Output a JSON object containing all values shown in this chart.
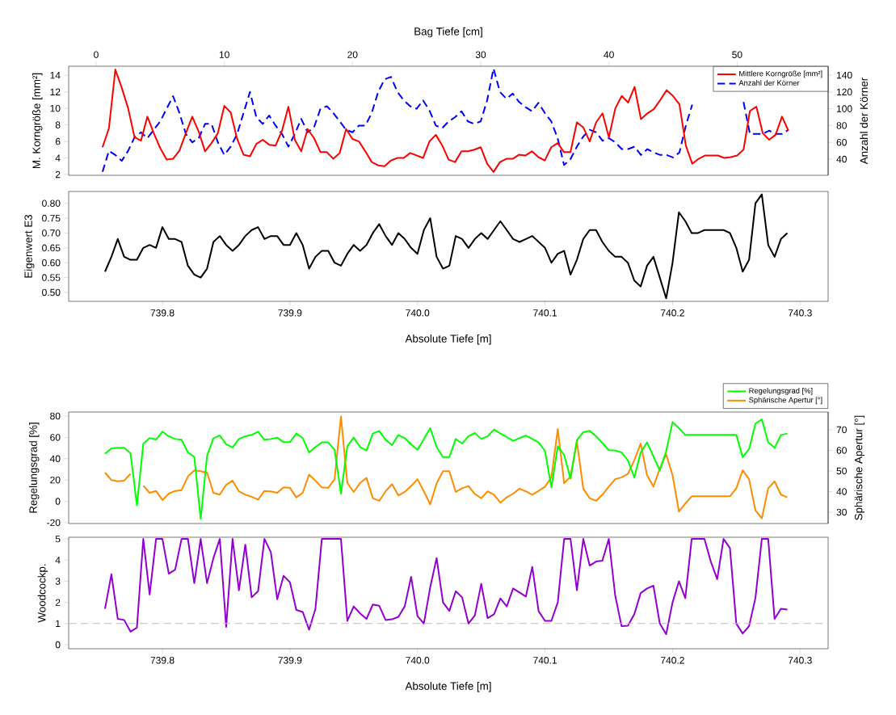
{
  "chart_data": [
    {
      "type": "line",
      "xlabel": "Bag Tiefe [cm]",
      "ylabel": "M. Korngröße [mm²]",
      "y2label": "Anzahl der Körner",
      "legend": "top right",
      "x": [
        0.5,
        1,
        1.5,
        2,
        2.5,
        3,
        3.5,
        4,
        4.5,
        5,
        5.5,
        6,
        6.5,
        7,
        7.5,
        8,
        8.5,
        9,
        9.5,
        10,
        10.5,
        11,
        11.5,
        12,
        12.5,
        13,
        13.5,
        14,
        14.5,
        15,
        15.5,
        16,
        16.5,
        17,
        17.5,
        18,
        18.5,
        19,
        19.5,
        20,
        20.5,
        21,
        21.5,
        22,
        22.5,
        23,
        23.5,
        24,
        24.5,
        25,
        25.5,
        26,
        26.5,
        27,
        27.5,
        28,
        28.5,
        29,
        29.5,
        30,
        30.5,
        31,
        31.5,
        32,
        32.5,
        33,
        33.5,
        34,
        34.5,
        35,
        35.5,
        36,
        36.5,
        37,
        37.5,
        38,
        38.5,
        39,
        39.5,
        40,
        40.5,
        41,
        41.5,
        42,
        42.5,
        43,
        43.5,
        44,
        44.5,
        45,
        45.5,
        46,
        46.5,
        47,
        47.5,
        48,
        48.5,
        49,
        49.5,
        50,
        50.5,
        51,
        51.5,
        52,
        52.5,
        53,
        53.5,
        54
      ],
      "xlim": [
        -2.14,
        57.1
      ],
      "xticks": [
        0,
        10,
        20,
        30,
        40,
        50
      ],
      "ylim": [
        1.9,
        15.1
      ],
      "yticks": [
        2,
        4,
        6,
        8,
        10,
        12,
        14
      ],
      "y2lim": [
        20.8,
        150.6
      ],
      "y2ticks": [
        40,
        60,
        80,
        100,
        120,
        140
      ],
      "series": [
        {
          "name": "Mittlere Korngröße [mm²]",
          "color": "#ff0000",
          "values": [
            5.3,
            7.6,
            14.7,
            12.5,
            10,
            6.5,
            6.1,
            9,
            7,
            5.2,
            3.8,
            3.9,
            4.9,
            7,
            9,
            7.2,
            4.8,
            5.8,
            7,
            10.3,
            9.5,
            6.3,
            4.4,
            4.2,
            5.7,
            6.2,
            5.6,
            5.5,
            7.3,
            10.2,
            6.2,
            4.8,
            7.5,
            6.4,
            4.7,
            4.7,
            3.9,
            4.6,
            7.5,
            6.3,
            6,
            4.8,
            3.5,
            3.1,
            3,
            3.7,
            4,
            4,
            4.6,
            4.3,
            4,
            6,
            6.8,
            5.5,
            3.8,
            3.5,
            4.8,
            4.8,
            5,
            5.3,
            3.3,
            2.3,
            3.5,
            3.9,
            3.9,
            4.4,
            4.3,
            4.8,
            4.1,
            3.7,
            5.3,
            5.8,
            4.7,
            4.7,
            8.3,
            7.7,
            6,
            8.3,
            9.4,
            6.5,
            10,
            11.5,
            10.7,
            12.6,
            8.7,
            9.4,
            9.9,
            11,
            12.2,
            11.5,
            10.5,
            5.5,
            3.3,
            3.9,
            4.3,
            4.3,
            4.3,
            4,
            4.1,
            4.3,
            5,
            9.7,
            10.2,
            7,
            6.2,
            6.8,
            9,
            7.3
          ]
        },
        {
          "name": "Anzahl der Körner",
          "color": "#0000ff",
          "line_style": "dashed",
          "axis": "y2",
          "values": [
            25,
            50,
            45,
            38,
            50,
            66,
            72,
            65,
            75,
            85,
            100,
            115,
            95,
            70,
            60,
            65,
            82,
            82,
            60,
            45,
            55,
            70,
            95,
            120,
            90,
            82,
            92,
            80,
            70,
            55,
            70,
            88,
            72,
            78,
            100,
            103,
            95,
            85,
            75,
            72,
            80,
            80,
            95,
            120,
            135,
            138,
            120,
            110,
            103,
            100,
            110,
            98,
            80,
            77,
            85,
            90,
            97,
            85,
            82,
            85,
            110,
            148,
            120,
            112,
            118,
            108,
            102,
            97,
            107,
            95,
            85,
            65,
            33,
            40,
            55,
            67,
            75,
            72,
            62,
            65,
            60,
            52,
            52,
            55,
            45,
            52,
            48,
            45,
            45,
            42,
            48,
            80,
            105,
            null,
            null,
            null,
            null,
            null,
            null,
            null,
            108,
            70,
            70,
            70,
            74,
            70,
            70,
            75
          ]
        }
      ]
    },
    {
      "type": "line",
      "xlabel": "Absolute Tiefe [m]",
      "ylabel": "Eigenwert E3",
      "x": [
        739.755,
        739.76,
        739.765,
        739.77,
        739.775,
        739.78,
        739.785,
        739.79,
        739.795,
        739.8,
        739.805,
        739.81,
        739.815,
        739.82,
        739.825,
        739.83,
        739.835,
        739.84,
        739.845,
        739.85,
        739.855,
        739.86,
        739.865,
        739.87,
        739.875,
        739.88,
        739.885,
        739.89,
        739.895,
        739.9,
        739.905,
        739.91,
        739.915,
        739.92,
        739.925,
        739.93,
        739.935,
        739.94,
        739.945,
        739.95,
        739.955,
        739.96,
        739.965,
        739.97,
        739.975,
        739.98,
        739.985,
        739.99,
        739.995,
        740.0,
        740.005,
        740.01,
        740.015,
        740.02,
        740.025,
        740.03,
        740.035,
        740.04,
        740.045,
        740.05,
        740.055,
        740.06,
        740.065,
        740.07,
        740.075,
        740.08,
        740.085,
        740.09,
        740.095,
        740.1,
        740.105,
        740.11,
        740.115,
        740.12,
        740.125,
        740.13,
        740.135,
        740.14,
        740.145,
        740.15,
        740.155,
        740.16,
        740.165,
        740.17,
        740.175,
        740.18,
        740.185,
        740.19,
        740.195,
        740.2,
        740.205,
        740.21,
        740.215,
        740.22,
        740.225,
        740.23,
        740.235,
        740.24,
        740.245,
        740.25,
        740.255,
        740.26,
        740.265,
        740.27,
        740.275,
        740.28,
        740.285,
        740.29
      ],
      "xlim": [
        739.7265,
        740.322
      ],
      "xticks": [
        {
          "value": 739.8,
          "label": "739.8"
        },
        {
          "value": 739.9,
          "label": "739.9"
        },
        {
          "value": 740.0,
          "label": "740.0"
        },
        {
          "value": 740.1,
          "label": "740.1"
        },
        {
          "value": 740.2,
          "label": "740.2"
        },
        {
          "value": 740.3,
          "label": "740.3"
        }
      ],
      "ylim": [
        0.47,
        0.84
      ],
      "yticks": [
        {
          "value": 0.5,
          "label": "0.50"
        },
        {
          "value": 0.55,
          "label": "0.55"
        },
        {
          "value": 0.6,
          "label": "0.60"
        },
        {
          "value": 0.65,
          "label": "0.65"
        },
        {
          "value": 0.7,
          "label": "0.70"
        },
        {
          "value": 0.75,
          "label": "0.75"
        },
        {
          "value": 0.8,
          "label": "0.80"
        }
      ],
      "series": [
        {
          "color": "#000000",
          "values": [
            0.57,
            0.62,
            0.68,
            0.62,
            0.61,
            0.61,
            0.65,
            0.66,
            0.65,
            0.72,
            0.68,
            0.68,
            0.67,
            0.59,
            0.56,
            0.55,
            0.58,
            0.67,
            0.69,
            0.66,
            0.64,
            0.66,
            0.69,
            0.71,
            0.72,
            0.68,
            0.69,
            0.69,
            0.66,
            0.66,
            0.7,
            0.66,
            0.58,
            0.62,
            0.64,
            0.64,
            0.6,
            0.59,
            0.63,
            0.66,
            0.64,
            0.66,
            0.7,
            0.73,
            0.69,
            0.66,
            0.7,
            0.68,
            0.65,
            0.63,
            0.71,
            0.75,
            0.62,
            0.58,
            0.59,
            0.69,
            0.68,
            0.65,
            0.68,
            0.7,
            0.68,
            0.71,
            0.74,
            0.71,
            0.68,
            0.67,
            0.68,
            0.69,
            0.67,
            0.65,
            0.6,
            0.63,
            0.64,
            0.56,
            0.61,
            0.68,
            0.71,
            0.71,
            0.67,
            0.64,
            0.62,
            0.62,
            0.6,
            0.54,
            0.52,
            0.59,
            0.62,
            0.55,
            0.48,
            0.6,
            0.77,
            0.74,
            0.7,
            0.7,
            0.71,
            0.71,
            0.71,
            0.71,
            0.7,
            0.65,
            0.57,
            0.61,
            0.8,
            0.83,
            0.66,
            0.62,
            0.68,
            0.7
          ]
        }
      ]
    },
    {
      "type": "line",
      "ylabel": "Regelungsgrad [%]",
      "y2label": "Sphärische Apertur [°]",
      "legend": "top right",
      "tick_labels": "y",
      "x": [
        739.755,
        739.76,
        739.765,
        739.77,
        739.775,
        739.78,
        739.785,
        739.79,
        739.795,
        739.8,
        739.805,
        739.81,
        739.815,
        739.82,
        739.825,
        739.83,
        739.835,
        739.84,
        739.845,
        739.85,
        739.855,
        739.86,
        739.865,
        739.87,
        739.875,
        739.88,
        739.885,
        739.89,
        739.895,
        739.9,
        739.905,
        739.91,
        739.915,
        739.92,
        739.925,
        739.93,
        739.935,
        739.94,
        739.945,
        739.95,
        739.955,
        739.96,
        739.965,
        739.97,
        739.975,
        739.98,
        739.985,
        739.99,
        739.995,
        740.0,
        740.005,
        740.01,
        740.015,
        740.02,
        740.025,
        740.03,
        740.035,
        740.04,
        740.045,
        740.05,
        740.055,
        740.06,
        740.065,
        740.07,
        740.075,
        740.08,
        740.085,
        740.09,
        740.095,
        740.1,
        740.105,
        740.11,
        740.115,
        740.12,
        740.125,
        740.13,
        740.135,
        740.14,
        740.145,
        740.15,
        740.155,
        740.16,
        740.165,
        740.17,
        740.175,
        740.18,
        740.185,
        740.19,
        740.195,
        740.2,
        740.205,
        740.21,
        740.215,
        740.22,
        740.225,
        740.23,
        740.235,
        740.24,
        740.245,
        740.25,
        740.255,
        740.26,
        740.265,
        740.27,
        740.275,
        740.28,
        740.285,
        740.29
      ],
      "xlim": [
        739.7265,
        740.322
      ],
      "ylim": [
        -20.8,
        83.8
      ],
      "yticks": [
        -20,
        0,
        20,
        40,
        60,
        80
      ],
      "y2lim": [
        24.5,
        78.6
      ],
      "y2ticks": [
        30,
        40,
        50,
        60,
        70
      ],
      "series": [
        {
          "name": "Regelungsgrad [%]",
          "color": "#00ff00",
          "values": [
            44.6,
            49.7,
            50.2,
            50.2,
            45.2,
            -3.8,
            54,
            59.3,
            58,
            65.4,
            61.1,
            58.5,
            57.8,
            45.9,
            41.6,
            -16.5,
            42.6,
            59.3,
            61.8,
            53.5,
            50.5,
            58.5,
            61.1,
            62.3,
            65.4,
            57.8,
            58.5,
            59.8,
            55.5,
            55.5,
            63.6,
            59.3,
            45.9,
            51,
            55.3,
            55.3,
            48.4,
            7.3,
            51.7,
            59.8,
            51,
            47.7,
            63.6,
            66.1,
            57.8,
            52.7,
            62.3,
            59.3,
            53.5,
            48.4,
            58.5,
            68.6,
            51,
            41.6,
            41.6,
            58.5,
            54.2,
            61.1,
            64.1,
            58.5,
            61.1,
            67.4,
            63.6,
            60.3,
            56.8,
            59.3,
            61.8,
            58.5,
            55.3,
            47.2,
            13.1,
            51.7,
            43.6,
            21.2,
            57.3,
            64.9,
            66.1,
            61.1,
            54.8,
            48,
            47.7,
            45.9,
            38.4,
            22.4,
            45.9,
            55.3,
            42.1,
            29,
            47.2,
            74.4,
            68.6,
            62.3,
            62.3,
            62.3,
            62.3,
            62.3,
            62.3,
            62.3,
            62.3,
            62.3,
            41.4,
            49.2,
            73,
            77,
            55.3,
            50.2,
            62.3,
            63.6
          ]
        },
        {
          "name": "Sphärische Apertur [°]",
          "color": "#ff8c00",
          "axis": "y2",
          "values": [
            49.2,
            45.6,
            45,
            45.3,
            48.6,
            null,
            42.9,
            39.4,
            40.3,
            35.9,
            39,
            40.3,
            40.7,
            47.3,
            50.3,
            49.9,
            49.2,
            39.4,
            38.5,
            43.3,
            45.3,
            40.1,
            38.5,
            37.5,
            36.1,
            40.3,
            40.1,
            39.4,
            42,
            41.8,
            37.2,
            39.4,
            48.2,
            45.3,
            42,
            41.8,
            46,
            76.4,
            44.2,
            39.8,
            44.2,
            46.6,
            36.8,
            35.5,
            40.1,
            43.6,
            38.1,
            39.8,
            42.7,
            46,
            40.1,
            33.8,
            44,
            49.9,
            49.9,
            39.8,
            41.6,
            42.7,
            38.8,
            36.8,
            40.1,
            38.5,
            34.6,
            37.2,
            39,
            41.4,
            40.1,
            38.5,
            40.3,
            42.4,
            46.9,
            70.4,
            44,
            47.3,
            64.2,
            41.4,
            36.8,
            35.5,
            38.5,
            42.4,
            46,
            46.9,
            48.6,
            55.1,
            63.3,
            47.9,
            42.4,
            51.2,
            58.1,
            47.9,
            30.3,
            34.2,
            37.7,
            37.7,
            37.7,
            37.7,
            37.7,
            37.7,
            37.7,
            41.6,
            50.3,
            46,
            30.9,
            27,
            41.6,
            45,
            38.5,
            37.2
          ]
        }
      ]
    },
    {
      "type": "line",
      "xlabel": "Absolute Tiefe [m]",
      "ylabel": "Woodcockp.",
      "x": [
        739.755,
        739.76,
        739.765,
        739.77,
        739.775,
        739.78,
        739.785,
        739.79,
        739.795,
        739.8,
        739.805,
        739.81,
        739.815,
        739.82,
        739.825,
        739.83,
        739.835,
        739.84,
        739.845,
        739.85,
        739.855,
        739.86,
        739.865,
        739.87,
        739.875,
        739.88,
        739.885,
        739.89,
        739.895,
        739.9,
        739.905,
        739.91,
        739.915,
        739.92,
        739.925,
        739.93,
        739.935,
        739.94,
        739.945,
        739.95,
        739.955,
        739.96,
        739.965,
        739.97,
        739.975,
        739.98,
        739.985,
        739.99,
        739.995,
        740.0,
        740.005,
        740.01,
        740.015,
        740.02,
        740.025,
        740.03,
        740.035,
        740.04,
        740.045,
        740.05,
        740.055,
        740.06,
        740.065,
        740.07,
        740.075,
        740.08,
        740.085,
        740.09,
        740.095,
        740.1,
        740.105,
        740.11,
        740.115,
        740.12,
        740.125,
        740.13,
        740.135,
        740.14,
        740.145,
        740.15,
        740.155,
        740.16,
        740.165,
        740.17,
        740.175,
        740.18,
        740.185,
        740.19,
        740.195,
        740.2,
        740.205,
        740.21,
        740.215,
        740.22,
        740.225,
        740.23,
        740.235,
        740.24,
        740.245,
        740.25,
        740.255,
        740.26,
        740.265,
        740.27,
        740.275,
        740.28,
        740.285,
        740.29
      ],
      "xlim": [
        739.7265,
        740.322
      ],
      "xticks": [
        {
          "value": 739.8,
          "label": "739.8"
        },
        {
          "value": 739.9,
          "label": "739.9"
        },
        {
          "value": 740.0,
          "label": "740.0"
        },
        {
          "value": 740.1,
          "label": "740.1"
        },
        {
          "value": 740.2,
          "label": "740.2"
        },
        {
          "value": 740.3,
          "label": "740.3"
        }
      ],
      "ylim": [
        -0.19,
        5.08
      ],
      "yticks": [
        0,
        1,
        2,
        3,
        4,
        5
      ],
      "ref_lines": [
        {
          "axis": "y",
          "value": 1,
          "color": "#bebebe",
          "line_style": "dashed"
        }
      ],
      "series": [
        {
          "color": "#9400d3",
          "values": [
            1.7,
            3.33,
            1.22,
            1.17,
            0.62,
            0.81,
            5,
            2.37,
            5,
            5,
            3.36,
            3.55,
            5,
            5,
            2.91,
            5,
            2.91,
            4.1,
            5,
            0.84,
            5,
            2.57,
            4.73,
            2.24,
            2.53,
            5,
            4.38,
            2.15,
            3.26,
            2.95,
            1.64,
            1.55,
            0.71,
            1.7,
            5,
            5,
            5,
            5,
            1.13,
            1.81,
            1.48,
            1.22,
            1.9,
            1.84,
            1.17,
            1.2,
            1.32,
            1.81,
            3.21,
            1.35,
            1,
            2.72,
            4.1,
            2,
            1.6,
            2.53,
            2.24,
            1,
            1.39,
            2.88,
            1.26,
            1.44,
            2.19,
            1.81,
            2.66,
            2.47,
            2.28,
            3.68,
            1.58,
            1.13,
            1.13,
            2,
            5,
            5,
            2.57,
            5,
            3.74,
            3.93,
            3.97,
            5,
            2.34,
            0.88,
            0.9,
            1.44,
            2.44,
            2.66,
            2.79,
            1,
            0.5,
            2,
            3,
            2.2,
            5,
            5,
            5,
            3.93,
            3.1,
            5,
            4.57,
            1,
            0.53,
            0.88,
            2.21,
            5,
            5,
            1.22,
            1.7,
            1.66
          ]
        }
      ]
    }
  ]
}
